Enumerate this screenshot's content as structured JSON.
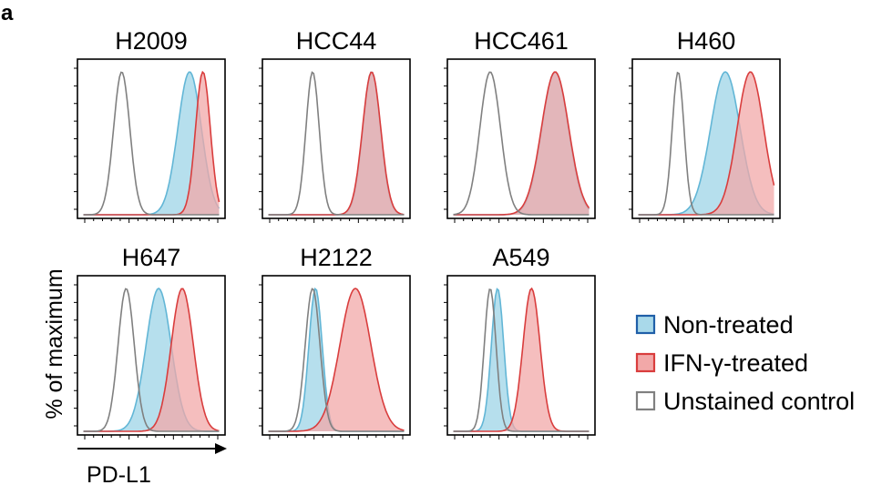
{
  "figure_label": "a",
  "axis": {
    "ylabel": "% of maximum",
    "xlabel": "PD-L1"
  },
  "colors": {
    "non_treated_fill": "#a9d9ea",
    "non_treated_line": "#62b6d6",
    "ifn_fill": "#f2a8a8",
    "ifn_line": "#d93d3d",
    "unstained_line": "#808080",
    "overlap_fill": "#cc9aa4"
  },
  "legend": {
    "items": [
      {
        "label": "Non-treated",
        "series": "non_treated"
      },
      {
        "label": "IFN-γ-treated",
        "series": "ifn"
      },
      {
        "label": "Unstained control",
        "series": "unstained"
      }
    ]
  },
  "chart_data": {
    "type": "area",
    "x_scale": "fluorescence intensity (log, unlabeled)",
    "y_range": [
      0,
      100
    ],
    "panels": [
      {
        "title": "H2009",
        "series": [
          {
            "key": "unstained",
            "peak_x": 0.3,
            "width": 0.055
          },
          {
            "key": "non_treated",
            "peak_x": 0.76,
            "width": 0.08
          },
          {
            "key": "ifn",
            "peak_x": 0.85,
            "width": 0.05
          }
        ]
      },
      {
        "title": "HCC44",
        "series": [
          {
            "key": "unstained",
            "peak_x": 0.34,
            "width": 0.045
          },
          {
            "key": "non_treated",
            "peak_x": 0.74,
            "width": 0.06
          },
          {
            "key": "ifn",
            "peak_x": 0.74,
            "width": 0.062
          }
        ]
      },
      {
        "title": "HCC461",
        "series": [
          {
            "key": "unstained",
            "peak_x": 0.29,
            "width": 0.07
          },
          {
            "key": "non_treated",
            "peak_x": 0.73,
            "width": 0.09
          },
          {
            "key": "ifn",
            "peak_x": 0.73,
            "width": 0.093
          }
        ]
      },
      {
        "title": "H460",
        "series": [
          {
            "key": "unstained",
            "peak_x": 0.31,
            "width": 0.04
          },
          {
            "key": "non_treated",
            "peak_x": 0.63,
            "width": 0.1
          },
          {
            "key": "ifn",
            "peak_x": 0.8,
            "width": 0.09
          }
        ]
      },
      {
        "title": "H647",
        "series": [
          {
            "key": "unstained",
            "peak_x": 0.33,
            "width": 0.055
          },
          {
            "key": "non_treated",
            "peak_x": 0.55,
            "width": 0.085
          },
          {
            "key": "ifn",
            "peak_x": 0.71,
            "width": 0.075
          }
        ]
      },
      {
        "title": "H2122",
        "series": [
          {
            "key": "unstained",
            "peak_x": 0.34,
            "width": 0.05
          },
          {
            "key": "non_treated",
            "peak_x": 0.36,
            "width": 0.045
          },
          {
            "key": "ifn",
            "peak_x": 0.63,
            "width": 0.105
          }
        ]
      },
      {
        "title": "A549",
        "series": [
          {
            "key": "unstained",
            "peak_x": 0.29,
            "width": 0.04
          },
          {
            "key": "non_treated",
            "peak_x": 0.34,
            "width": 0.042
          },
          {
            "key": "ifn",
            "peak_x": 0.57,
            "width": 0.058
          }
        ]
      }
    ]
  }
}
